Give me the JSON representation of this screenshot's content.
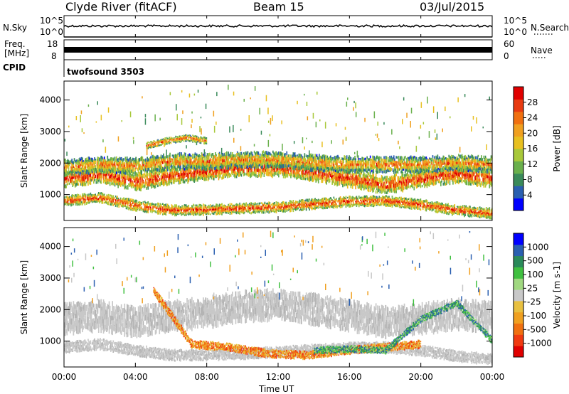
{
  "header": {
    "title": "Clyde River (fitACF)",
    "beam": "Beam 15",
    "date": "03/Jul/2015"
  },
  "sky_panel": {
    "left_label": "N.Sky",
    "right_label": "N.Search",
    "left_ticks": [
      "10^5",
      "10^0"
    ],
    "right_ticks": [
      "10^5",
      "10^0"
    ]
  },
  "freq_panel": {
    "left_label_lines": [
      "Freq.",
      "[MHz]"
    ],
    "left_ticks": [
      "18",
      "8"
    ],
    "right_label": "Nave",
    "right_ticks": [
      "60",
      "0"
    ]
  },
  "cpid_panel": {
    "label": "CPID",
    "program": "twofsound 3503"
  },
  "x_axis": {
    "label": "Time UT",
    "ticks": [
      "00:00",
      "04:00",
      "08:00",
      "12:00",
      "16:00",
      "20:00",
      "00:00"
    ]
  },
  "chart_data": [
    {
      "type": "heatmap",
      "quantity": "Power",
      "ylabel": "Slant Range [km]",
      "y_ticks": [
        1000,
        2000,
        3000,
        4000
      ],
      "ylim": [
        180,
        4600
      ],
      "xlim_hours": [
        0,
        24
      ],
      "colorbar": {
        "label": "Power [dB]",
        "tick_labels": [
          "28",
          "24",
          "20",
          "16",
          "12",
          "8",
          "4"
        ],
        "colors": [
          "#0000ff",
          "#2a5fb0",
          "#3a8a5a",
          "#6ab04c",
          "#a8c83a",
          "#e8c020",
          "#f0a020",
          "#f07010",
          "#e83a10",
          "#e00000"
        ]
      },
      "bands": [
        {
          "name": "lower echo band",
          "x_hours": [
            0,
            24
          ],
          "center_range_km": [
            1500,
            1650,
            1400,
            1600,
            1750,
            1850,
            1850,
            1700,
            1500,
            1300,
            1500,
            1650,
            1500
          ],
          "half_width_km": 250,
          "level_db": 20
        },
        {
          "name": "upper echo band",
          "x_hours": [
            0,
            24
          ],
          "center_range_km": [
            1850,
            1950,
            1900,
            2050,
            2050,
            2100,
            2100,
            2000,
            1950,
            1950,
            1950,
            2000,
            1950
          ],
          "half_width_km": 230,
          "level_db": 10
        },
        {
          "name": "near range band",
          "x_hours": [
            0,
            24
          ],
          "center_range_km": [
            800,
            900,
            650,
            500,
            520,
            560,
            600,
            700,
            780,
            800,
            680,
            500,
            400
          ],
          "half_width_km": 150,
          "level_db": 18
        },
        {
          "name": "high-altitude patch",
          "x_hours": [
            4.6,
            8.0
          ],
          "center_range_km": [
            2550,
            2700,
            2800,
            2700
          ],
          "half_width_km": 100,
          "level_db": 14
        }
      ]
    },
    {
      "type": "heatmap",
      "quantity": "Velocity",
      "ylabel": "Slant Range [km]",
      "y_ticks": [
        1000,
        2000,
        3000,
        4000
      ],
      "ylim": [
        180,
        4600
      ],
      "xlim_hours": [
        0,
        24
      ],
      "colorbar": {
        "label": "Velocity [m s-1]",
        "tick_labels": [
          "1000",
          "500",
          "100",
          "25",
          "-25",
          "-100",
          "-500",
          "-1000"
        ],
        "colors": [
          "#e00000",
          "#f03a10",
          "#f07010",
          "#f0a020",
          "#e8c040",
          "#c8c8c8",
          "#a0d880",
          "#40c040",
          "#2a8a5a",
          "#2a5fb0",
          "#0000ff"
        ]
      },
      "bands": [
        {
          "name": "ground scatter band",
          "x_hours": [
            0,
            24
          ],
          "center_range_km": [
            1700,
            1800,
            1600,
            1800,
            1900,
            2100,
            2150,
            2000,
            1800,
            1600,
            1700,
            1850,
            1750
          ],
          "half_width_km": 420,
          "class": "ground scatter"
        },
        {
          "name": "near range ground scatter",
          "x_hours": [
            0,
            24
          ],
          "center_range_km": [
            800,
            900,
            700,
            550,
            560,
            600,
            650,
            720,
            780,
            800,
            700,
            520,
            420
          ],
          "half_width_km": 160,
          "class": "ground scatter"
        },
        {
          "name": "negative velocity echoes",
          "x_hours": [
            5,
            20
          ],
          "center_range_km": [
            2600,
            900,
            800,
            600,
            550,
            700,
            800,
            900
          ],
          "half_width_km": 120,
          "level_ms": -200
        },
        {
          "name": "positive velocity echoes",
          "x_hours": [
            14,
            24
          ],
          "center_range_km": [
            700,
            750,
            700,
            1700,
            2200,
            1000
          ],
          "half_width_km": 100,
          "level_ms": 150
        }
      ]
    }
  ]
}
